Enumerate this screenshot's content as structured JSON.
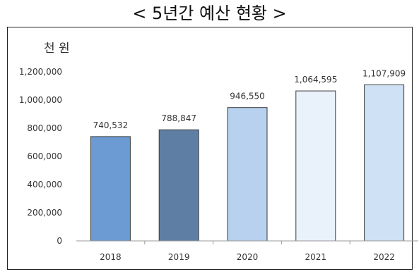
{
  "chart_data": {
    "type": "bar",
    "title": "< 5년간 예산 현황 >",
    "ylabel": "천 원",
    "categories": [
      "2018",
      "2019",
      "2020",
      "2021",
      "2022"
    ],
    "values": [
      740532,
      788847,
      946550,
      1064595,
      1107909
    ],
    "value_labels": [
      "740,532",
      "788,847",
      "946,550",
      "1,064,595",
      "1,107,909"
    ],
    "y_ticks": [
      "0",
      "200,000",
      "400,000",
      "600,000",
      "800,000",
      "1,000,000",
      "1,200,000"
    ],
    "y_tick_values": [
      0,
      200000,
      400000,
      600000,
      800000,
      1000000,
      1200000
    ],
    "ylim": [
      0,
      1200000
    ],
    "grid": false,
    "bar_colors": [
      "#6b9bd2",
      "#5f7ea3",
      "#b7d1ee",
      "#e9f1fb",
      "#cfe1f5"
    ]
  }
}
